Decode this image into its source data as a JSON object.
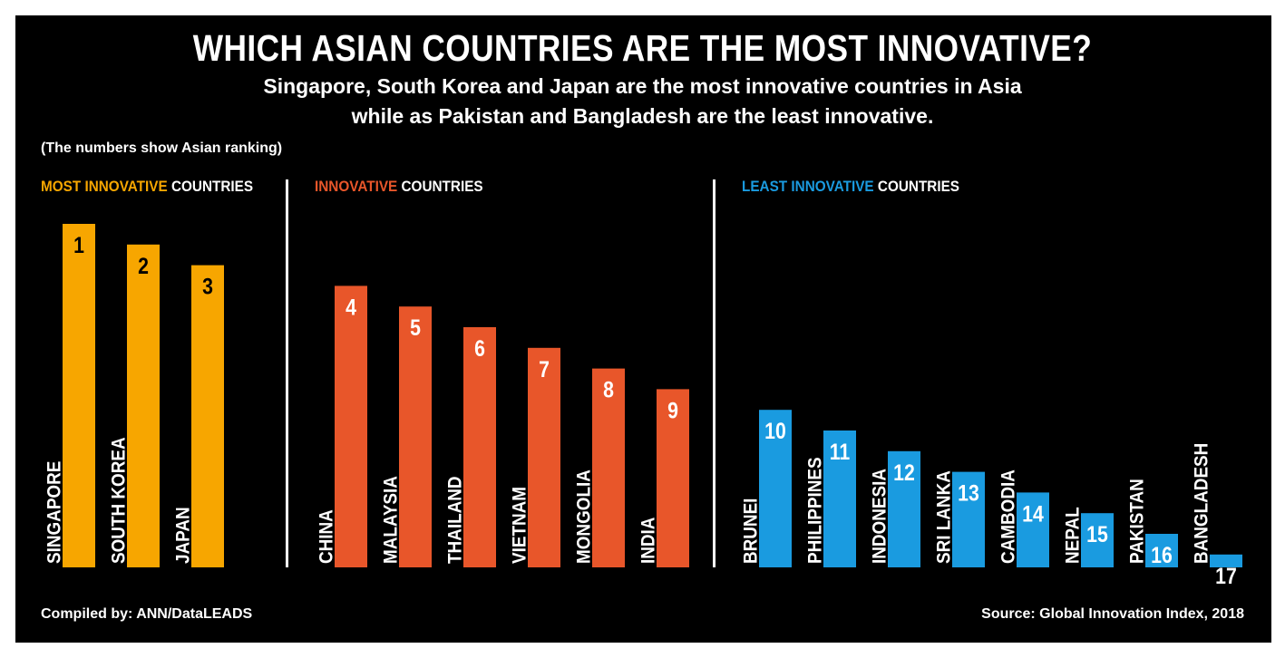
{
  "title": "WHICH ASIAN COUNTRIES ARE THE MOST INNOVATIVE?",
  "subtitle_line1": "Singapore, South Korea and Japan are the most innovative countries in Asia",
  "subtitle_line2": "while as Pakistan and Bangladesh are the least innovative.",
  "note": "(The numbers show Asian ranking)",
  "sections": [
    {
      "accent": "MOST INNOVATIVE",
      "rest": " COUNTRIES",
      "color": "#F7A600"
    },
    {
      "accent": "INNOVATIVE",
      "rest": " COUNTRIES",
      "color": "#E8562A"
    },
    {
      "accent": "LEAST INNOVATIVE",
      "rest": " COUNTRIES",
      "color": "#1A9BE0"
    }
  ],
  "footer_left": "Compiled by: ANN/DataLEADS",
  "footer_right": "Source: Global Innovation Index, 2018",
  "chart_data": {
    "type": "bar",
    "categories": [
      "SINGAPORE",
      "SOUTH KOREA",
      "JAPAN",
      "CHINA",
      "MALAYSIA",
      "THAILAND",
      "VIETNAM",
      "MONGOLIA",
      "INDIA",
      "BRUNEI",
      "PHILIPPINES",
      "INDONESIA",
      "SRI LANKA",
      "CAMBODIA",
      "NEPAL",
      "PAKISTAN",
      "BANGLADESH"
    ],
    "values": [
      1,
      2,
      3,
      4,
      5,
      6,
      7,
      8,
      9,
      10,
      11,
      12,
      13,
      14,
      15,
      16,
      17
    ],
    "groups": [
      0,
      0,
      0,
      1,
      1,
      1,
      1,
      1,
      1,
      2,
      2,
      2,
      2,
      2,
      2,
      2,
      2
    ],
    "colors": [
      "#F7A600",
      "#E8562A",
      "#1A9BE0"
    ],
    "label_colors": [
      "#000000",
      "#ffffff",
      "#ffffff"
    ]
  }
}
